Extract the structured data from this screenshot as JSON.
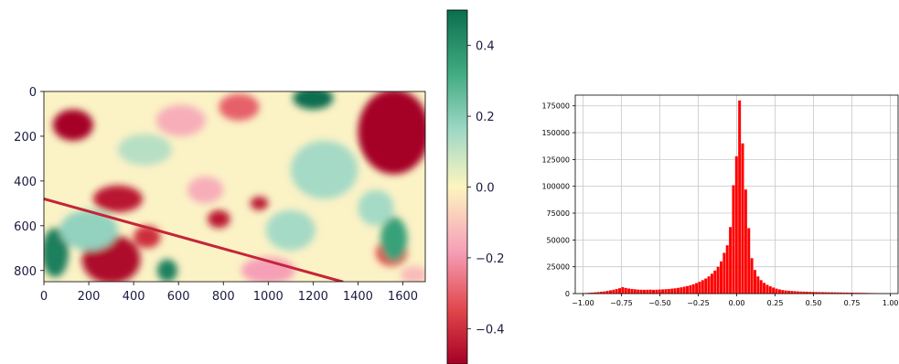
{
  "chart_data": [
    {
      "type": "heatmap",
      "title": "",
      "xlabel": "",
      "ylabel": "",
      "xlim": [
        0,
        1700
      ],
      "ylim": [
        850,
        0
      ],
      "x_ticks": [
        0,
        200,
        400,
        600,
        800,
        1000,
        1200,
        1400,
        1600
      ],
      "y_ticks": [
        0,
        200,
        400,
        600,
        800
      ],
      "colormap": "red-pink-yellow-green (diverging)",
      "colormap_stops": [
        "#a50026",
        "#e0454a",
        "#f6a0b8",
        "#fdf5bf",
        "#9fd8c6",
        "#41ab82",
        "#0b6e4f"
      ],
      "colorbar": {
        "range": [
          -0.5,
          0.5
        ],
        "ticks": [
          0.4,
          0.2,
          0.0,
          -0.2,
          -0.4
        ],
        "tick_labels": [
          "0.4",
          "0.2",
          "0.0",
          "−0.2",
          "−0.4"
        ]
      },
      "regions": [
        {
          "label": "red blob",
          "value": -0.5,
          "cx": 130,
          "cy": 150,
          "rx": 90,
          "ry": 70
        },
        {
          "label": "red block top-right",
          "value": -0.5,
          "cx": 1560,
          "cy": 180,
          "rx": 160,
          "ry": 190
        },
        {
          "label": "red blob",
          "value": -0.48,
          "cx": 300,
          "cy": 750,
          "rx": 130,
          "ry": 110
        },
        {
          "label": "red blob",
          "value": -0.45,
          "cx": 330,
          "cy": 480,
          "rx": 110,
          "ry": 60
        },
        {
          "label": "red blob",
          "value": -0.4,
          "cx": 460,
          "cy": 650,
          "rx": 60,
          "ry": 50
        },
        {
          "label": "red blob",
          "value": -0.45,
          "cx": 780,
          "cy": 570,
          "rx": 50,
          "ry": 40
        },
        {
          "label": "red blob",
          "value": -0.45,
          "cx": 960,
          "cy": 500,
          "rx": 40,
          "ry": 30
        },
        {
          "label": "red blob",
          "value": -0.35,
          "cx": 1550,
          "cy": 720,
          "rx": 70,
          "ry": 60
        },
        {
          "label": "red blob",
          "value": -0.3,
          "cx": 870,
          "cy": 70,
          "rx": 90,
          "ry": 60
        },
        {
          "label": "green block",
          "value": 0.5,
          "cx": 1200,
          "cy": 30,
          "rx": 90,
          "ry": 50
        },
        {
          "label": "green block",
          "value": 0.45,
          "cx": 50,
          "cy": 720,
          "rx": 60,
          "ry": 110
        },
        {
          "label": "green block",
          "value": 0.45,
          "cx": 550,
          "cy": 800,
          "rx": 45,
          "ry": 50
        },
        {
          "label": "green patch",
          "value": 0.35,
          "cx": 1560,
          "cy": 660,
          "rx": 60,
          "ry": 100
        },
        {
          "label": "teal patch",
          "value": 0.15,
          "cx": 1250,
          "cy": 350,
          "rx": 150,
          "ry": 130
        },
        {
          "label": "teal patch",
          "value": 0.15,
          "cx": 1100,
          "cy": 620,
          "rx": 110,
          "ry": 90
        },
        {
          "label": "teal patch",
          "value": 0.18,
          "cx": 200,
          "cy": 620,
          "rx": 130,
          "ry": 90
        },
        {
          "label": "teal patch",
          "value": 0.12,
          "cx": 450,
          "cy": 260,
          "rx": 120,
          "ry": 70
        },
        {
          "label": "teal patch",
          "value": 0.15,
          "cx": 1480,
          "cy": 520,
          "rx": 80,
          "ry": 80
        },
        {
          "label": "pink patch",
          "value": -0.15,
          "cx": 610,
          "cy": 130,
          "rx": 110,
          "ry": 70
        },
        {
          "label": "pink patch",
          "value": -0.15,
          "cx": 720,
          "cy": 440,
          "rx": 80,
          "ry": 60
        },
        {
          "label": "pink patch",
          "value": -0.18,
          "cx": 1000,
          "cy": 800,
          "rx": 120,
          "ry": 60
        },
        {
          "label": "pink patch",
          "value": -0.12,
          "cx": 1650,
          "cy": 820,
          "rx": 60,
          "ry": 40
        }
      ],
      "ridge_line": {
        "value": -0.42,
        "from": [
          0,
          480
        ],
        "to": [
          1330,
          850
        ]
      }
    },
    {
      "type": "bar",
      "title": "",
      "xlabel": "",
      "ylabel": "",
      "grid": true,
      "xlim": [
        -1.05,
        1.05
      ],
      "ylim": [
        0,
        185000
      ],
      "x_ticks": [
        -1.0,
        -0.75,
        -0.5,
        -0.25,
        0.0,
        0.25,
        0.5,
        0.75,
        1.0
      ],
      "x_tick_labels": [
        "−1.00",
        "−0.75",
        "−0.50",
        "−0.25",
        "0.00",
        "0.25",
        "0.50",
        "0.75",
        "1.00"
      ],
      "y_ticks": [
        0,
        25000,
        50000,
        75000,
        100000,
        125000,
        150000,
        175000
      ],
      "y_tick_labels": [
        "0",
        "25000",
        "50000",
        "75000",
        "100000",
        "125000",
        "150000",
        "175000"
      ],
      "bar_color": "#ff0000",
      "bin_width": 0.02,
      "bins": [
        [
          -1.0,
          300
        ],
        [
          -0.98,
          500
        ],
        [
          -0.96,
          700
        ],
        [
          -0.94,
          900
        ],
        [
          -0.92,
          1100
        ],
        [
          -0.9,
          1400
        ],
        [
          -0.88,
          1700
        ],
        [
          -0.86,
          2000
        ],
        [
          -0.84,
          2500
        ],
        [
          -0.82,
          3000
        ],
        [
          -0.8,
          3600
        ],
        [
          -0.78,
          4200
        ],
        [
          -0.76,
          5000
        ],
        [
          -0.74,
          6000
        ],
        [
          -0.72,
          5200
        ],
        [
          -0.7,
          4700
        ],
        [
          -0.68,
          4300
        ],
        [
          -0.66,
          4000
        ],
        [
          -0.64,
          3700
        ],
        [
          -0.62,
          3600
        ],
        [
          -0.6,
          3500
        ],
        [
          -0.58,
          3600
        ],
        [
          -0.56,
          3700
        ],
        [
          -0.54,
          3500
        ],
        [
          -0.52,
          3600
        ],
        [
          -0.5,
          3800
        ],
        [
          -0.48,
          3900
        ],
        [
          -0.46,
          4100
        ],
        [
          -0.44,
          4300
        ],
        [
          -0.42,
          4600
        ],
        [
          -0.4,
          4900
        ],
        [
          -0.38,
          5300
        ],
        [
          -0.36,
          5800
        ],
        [
          -0.34,
          6400
        ],
        [
          -0.32,
          7000
        ],
        [
          -0.3,
          7800
        ],
        [
          -0.28,
          8700
        ],
        [
          -0.26,
          9800
        ],
        [
          -0.24,
          11000
        ],
        [
          -0.22,
          12500
        ],
        [
          -0.2,
          14000
        ],
        [
          -0.18,
          16000
        ],
        [
          -0.16,
          18500
        ],
        [
          -0.14,
          21500
        ],
        [
          -0.12,
          25000
        ],
        [
          -0.1,
          30000
        ],
        [
          -0.08,
          38000
        ],
        [
          -0.06,
          45000
        ],
        [
          -0.04,
          62000
        ],
        [
          -0.02,
          101000
        ],
        [
          0.0,
          128000
        ],
        [
          0.02,
          180000
        ],
        [
          0.04,
          140000
        ],
        [
          0.06,
          97000
        ],
        [
          0.08,
          61000
        ],
        [
          0.1,
          33000
        ],
        [
          0.12,
          22000
        ],
        [
          0.14,
          16000
        ],
        [
          0.16,
          12500
        ],
        [
          0.18,
          10000
        ],
        [
          0.2,
          8200
        ],
        [
          0.22,
          6800
        ],
        [
          0.24,
          5600
        ],
        [
          0.26,
          4600
        ],
        [
          0.28,
          3900
        ],
        [
          0.3,
          3300
        ],
        [
          0.32,
          2900
        ],
        [
          0.34,
          2600
        ],
        [
          0.36,
          2400
        ],
        [
          0.38,
          2200
        ],
        [
          0.4,
          2000
        ],
        [
          0.42,
          1900
        ],
        [
          0.44,
          1800
        ],
        [
          0.46,
          1700
        ],
        [
          0.48,
          1600
        ],
        [
          0.5,
          1500
        ],
        [
          0.52,
          1400
        ],
        [
          0.54,
          1350
        ],
        [
          0.56,
          1300
        ],
        [
          0.58,
          1250
        ],
        [
          0.6,
          1200
        ],
        [
          0.62,
          1150
        ],
        [
          0.64,
          1100
        ],
        [
          0.66,
          1050
        ],
        [
          0.68,
          1000
        ],
        [
          0.7,
          950
        ],
        [
          0.72,
          900
        ],
        [
          0.74,
          850
        ],
        [
          0.76,
          800
        ],
        [
          0.78,
          760
        ],
        [
          0.8,
          720
        ],
        [
          0.82,
          680
        ],
        [
          0.84,
          620
        ],
        [
          0.86,
          560
        ],
        [
          0.88,
          500
        ],
        [
          0.9,
          440
        ],
        [
          0.92,
          380
        ],
        [
          0.94,
          320
        ],
        [
          0.96,
          260
        ],
        [
          0.98,
          200
        ]
      ]
    }
  ]
}
